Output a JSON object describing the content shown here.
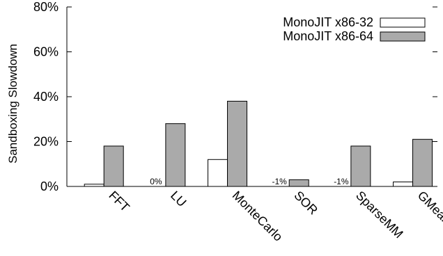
{
  "chart_data": {
    "type": "bar",
    "categories": [
      "FFT",
      "LU",
      "MonteCarlo",
      "SOR",
      "SparseMM",
      "GMean"
    ],
    "series": [
      {
        "name": "MonoJIT x86-32",
        "values": [
          1,
          0,
          12,
          -1,
          -1,
          2
        ],
        "color": "#ffffff"
      },
      {
        "name": "MonoJIT x86-64",
        "values": [
          18,
          28,
          38,
          3,
          18,
          21
        ],
        "color": "#aaaaaa"
      }
    ],
    "data_labels": [
      {
        "category": "LU",
        "series": "MonoJIT x86-32",
        "text": "0%"
      },
      {
        "category": "SOR",
        "series": "MonoJIT x86-32",
        "text": "-1%"
      },
      {
        "category": "SparseMM",
        "series": "MonoJIT x86-32",
        "text": "-1%"
      }
    ],
    "ylabel": "Sandboxing Slowdown",
    "xlabel": "",
    "ylim": [
      0,
      80
    ],
    "yticks": [
      0,
      20,
      40,
      60,
      80
    ],
    "ytick_labels": [
      "0%",
      "20%",
      "40%",
      "60%",
      "80%"
    ],
    "legend_position": "top-right",
    "grid": false,
    "category_label_rotation": 45
  }
}
